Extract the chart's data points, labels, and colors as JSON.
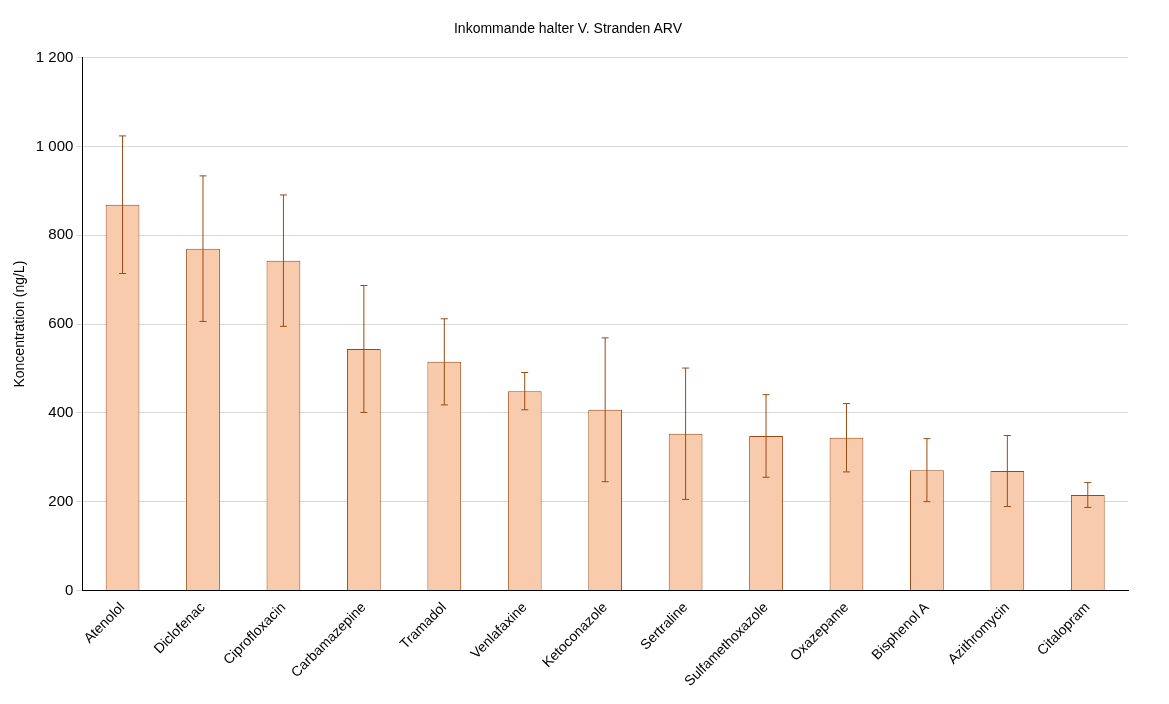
{
  "chart_data": {
    "type": "bar",
    "title": "Inkommande halter V. Stranden ARV",
    "ylabel": "Koncentration (ng/L)",
    "categories": [
      "Atenolol",
      "Diclofenac",
      "Ciprofloxacin",
      "Carbamazepine",
      "Tramadol",
      "Venlafaxine",
      "Ketoconazole",
      "Sertraline",
      "Sulfamethoxazole",
      "Oxazepame",
      "Bisphenol A",
      "Azithromycin",
      "Citalopram"
    ],
    "series": [
      {
        "color": "#f8cbad",
        "values": [
          869,
          770,
          743,
          544,
          515,
          449,
          407,
          353,
          348,
          344,
          271,
          269,
          215
        ],
        "errors": [
          155,
          164,
          148,
          143,
          97,
          42,
          162,
          148,
          93,
          77,
          71,
          80,
          28
        ]
      }
    ],
    "ylim": [
      0,
      1200
    ],
    "yticks": [
      0,
      200,
      400,
      600,
      800,
      {
        "value": 1000,
        "label": "1 000"
      },
      {
        "value": 1200,
        "label": "1 200"
      }
    ],
    "grid": "y",
    "legend": false
  }
}
